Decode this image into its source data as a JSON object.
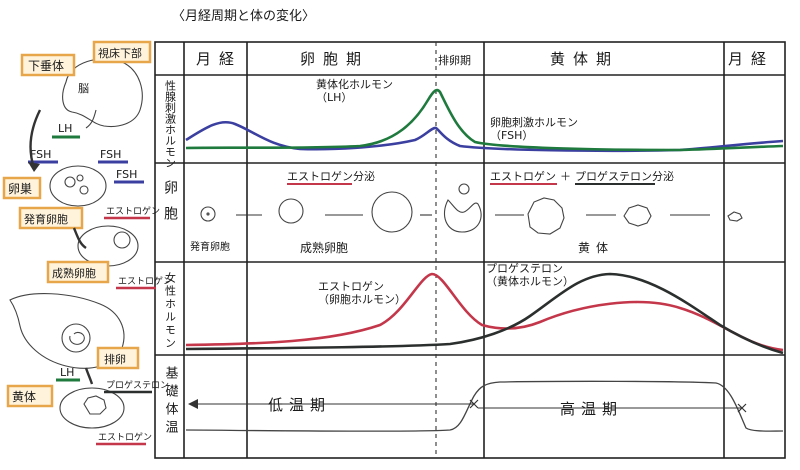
{
  "title": "〈月経周期と体の変化〉",
  "phases": [
    "月経",
    "卵胞期",
    "排卵期",
    "黄体期",
    "月経"
  ],
  "rows": {
    "pituitary": "性腺刺激ホルモン",
    "follicle": "卵胞",
    "female_hormone": "女性ホルモン",
    "bbt": "基礎体温"
  },
  "pituitary_labels": {
    "lh": "黄体化ホルモン\n（LH）",
    "fsh": "卵胞刺激ホルモン\n（FSH）"
  },
  "follicle_labels": {
    "estrogen_secretion": "エストロゲン分泌",
    "estrogen": "エストロゲン",
    "plus": "＋",
    "progesterone_secretion": "プロゲステロン分泌",
    "developing": "発育卵胞",
    "mature": "成熟卵胞",
    "corpus_luteum": "黄体"
  },
  "hormone_labels": {
    "estrogen": "エストロゲン\n（卵胞ホルモン）",
    "progesterone": "プロゲステロン\n（黄体ホルモン）"
  },
  "bbt_labels": {
    "low": "低温期",
    "high": "高温期"
  },
  "sidebar": {
    "pituitary": "下垂体",
    "hypothalamus": "視床下部",
    "brain": "脳",
    "lh": "LH",
    "fsh1": "FSH",
    "fsh2": "FSH",
    "fsh3": "FSH",
    "ovary": "卵巣",
    "developing_follicle": "発育卵胞",
    "estrogen1": "エストロゲン",
    "mature_follicle": "成熟卵胞",
    "estrogen2": "エストロゲン",
    "lh2": "LH",
    "ovulation": "排卵",
    "corpus_luteum": "黄体",
    "progesterone": "プロゲステロン",
    "estrogen3": "エストロゲン"
  },
  "colors": {
    "lh": "#1f7a3e",
    "fsh": "#3b3fa0",
    "estrogen": "#c4364a",
    "progesterone": "#2b2f2e",
    "tag_fill": "#fff3dc",
    "tag_border": "#e8a64a"
  }
}
